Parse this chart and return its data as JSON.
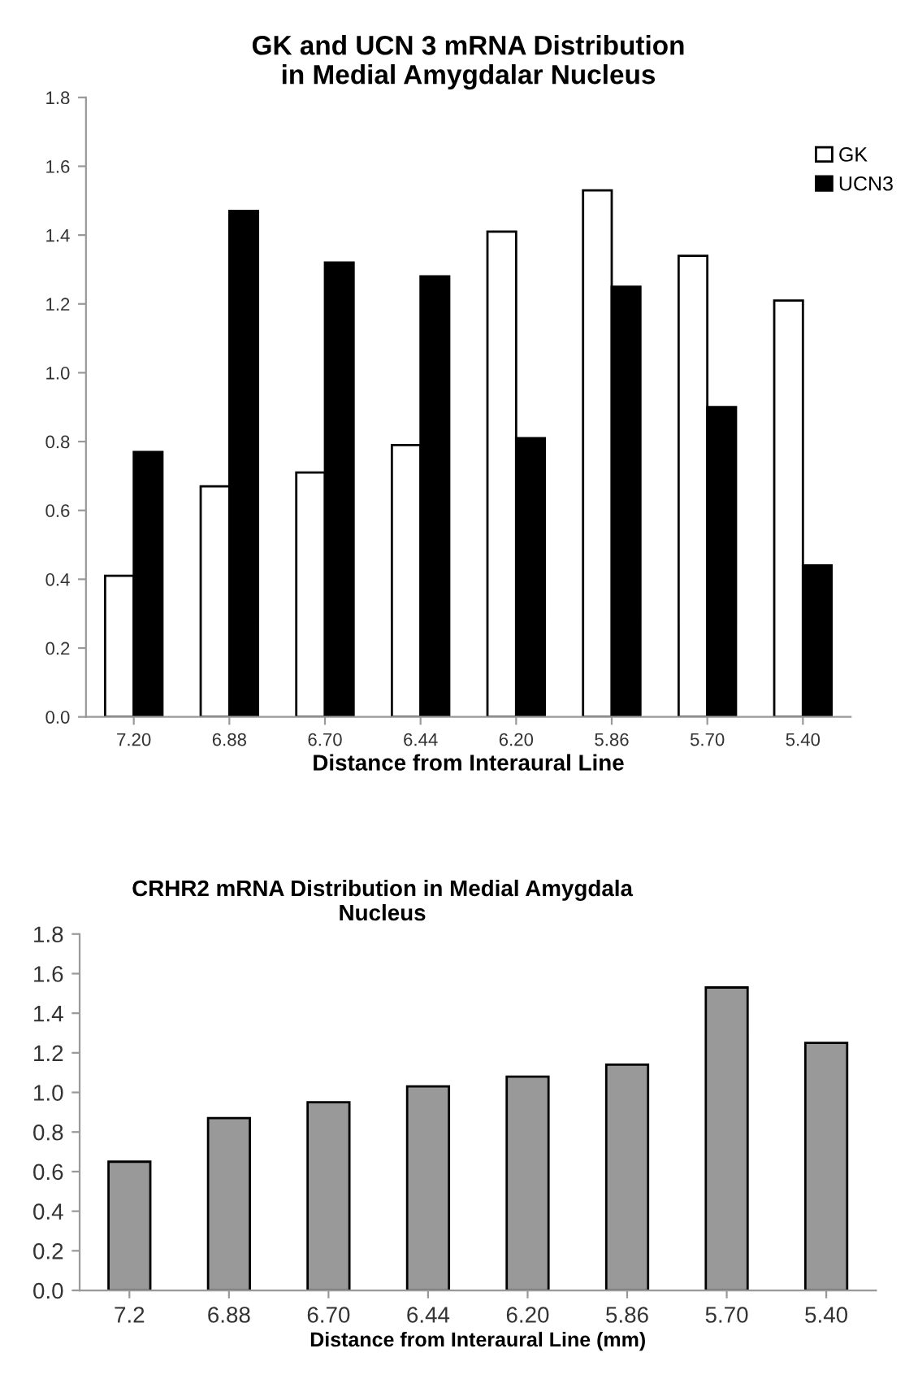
{
  "chart_data": [
    {
      "type": "bar",
      "title": "GK and UCN 3 mRNA Distribution\nin Medial Amygdalar Nucleus",
      "xlabel": "Distance from Interaural Line",
      "categories": [
        "7.20",
        "6.88",
        "6.70",
        "6.44",
        "6.20",
        "5.86",
        "5.70",
        "5.40"
      ],
      "series": [
        {
          "name": "GK",
          "color": "#ffffff",
          "values": [
            0.41,
            0.67,
            0.71,
            0.79,
            1.41,
            1.53,
            1.34,
            1.21
          ]
        },
        {
          "name": "UCN3",
          "color": "#000000",
          "values": [
            0.77,
            1.47,
            1.32,
            1.28,
            0.81,
            1.25,
            0.9,
            0.44
          ]
        }
      ],
      "ylim": [
        0,
        1.8
      ],
      "yticks": [
        {
          "value": 0,
          "label": "0.0"
        },
        {
          "value": 0.2,
          "label": "0.2"
        },
        {
          "value": 0.4,
          "label": "0.4"
        },
        {
          "value": 0.6,
          "label": "0.6"
        },
        {
          "value": 0.8,
          "label": "0.8"
        },
        {
          "value": 1.0,
          "label": "1.0"
        },
        {
          "value": 1.2,
          "label": "1.2"
        },
        {
          "value": 1.4,
          "label": "1.4"
        },
        {
          "value": 1.6,
          "label": "1.6"
        },
        {
          "value": 1.8,
          "label": "1.8"
        }
      ],
      "legend": "top right",
      "grid": false
    },
    {
      "type": "bar",
      "title": "CRHR2 mRNA Distribution in Medial Amygdala\nNucleus",
      "xlabel": "Distance from Interaural Line (mm)",
      "categories": [
        "7.2",
        "6.88",
        "6.70",
        "6.44",
        "6.20",
        "5.86",
        "5.70",
        "5.40"
      ],
      "series": [
        {
          "color": "#999999",
          "values": [
            0.65,
            0.87,
            0.95,
            1.03,
            1.08,
            1.14,
            1.53,
            1.25
          ]
        }
      ],
      "ylim": [
        0,
        1.8
      ],
      "yticks": [
        {
          "value": 0,
          "label": "0.0"
        },
        {
          "value": 0.2,
          "label": "0.2"
        },
        {
          "value": 0.4,
          "label": "0.4"
        },
        {
          "value": 0.6,
          "label": "0.6"
        },
        {
          "value": 0.8,
          "label": "0.8"
        },
        {
          "value": 1.0,
          "label": "1.0"
        },
        {
          "value": 1.2,
          "label": "1.2"
        },
        {
          "value": 1.4,
          "label": "1.4"
        },
        {
          "value": 1.6,
          "label": "1.6"
        },
        {
          "value": 1.8,
          "label": "1.8"
        }
      ],
      "legend": false,
      "grid": false
    }
  ]
}
